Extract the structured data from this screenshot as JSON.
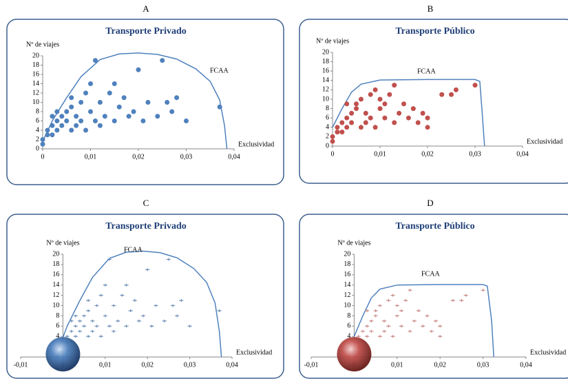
{
  "chart_data": [
    {
      "type": "scatter",
      "panel_label": "A",
      "title": "Transporte Privado",
      "y_label": "Nº de viajes",
      "x_label": "Exclusividad",
      "annotation": "FCAA",
      "marker": "circle",
      "xlim": [
        0,
        0.04
      ],
      "ylim": [
        0,
        20
      ],
      "xticks": [
        {
          "value": 0,
          "label": "0"
        },
        {
          "value": 0.01,
          "label": "0,01"
        },
        {
          "value": 0.02,
          "label": "0,02"
        },
        {
          "value": 0.03,
          "label": "0,03"
        },
        {
          "value": 0.04,
          "label": "0,04"
        }
      ],
      "yticks": [
        0,
        2,
        4,
        6,
        8,
        10,
        12,
        14,
        16,
        18,
        20
      ],
      "series": [
        {
          "color": "#4f81bd",
          "x": [
            0,
            0,
            0.001,
            0.001,
            0.002,
            0.002,
            0.003,
            0.003,
            0.004,
            0.004,
            0.005,
            0.005,
            0.006,
            0.006,
            0.007,
            0.007,
            0.008,
            0.008,
            0.009,
            0.009,
            0.01,
            0.01,
            0.011,
            0.011,
            0.012,
            0.012,
            0.013,
            0.014,
            0.015,
            0.015,
            0.016,
            0.017,
            0.018,
            0.019,
            0.02,
            0.021,
            0.022,
            0.024,
            0.025,
            0.026,
            0.027,
            0.028,
            0.03,
            0.037,
            0.003,
            0.006,
            0.002
          ],
          "values": [
            1,
            2,
            3,
            4,
            5,
            3,
            6,
            4,
            7,
            5,
            8,
            6,
            4,
            9,
            7,
            5,
            10,
            6,
            12,
            4,
            8,
            14,
            6,
            19,
            10,
            5,
            7,
            12,
            14,
            6,
            9,
            11,
            7,
            8,
            17,
            6,
            10,
            7,
            19,
            10,
            8,
            11,
            6,
            9,
            8,
            11,
            7
          ]
        }
      ],
      "curve": {
        "color": "#4f81bd",
        "x": [
          0,
          0.002,
          0.005,
          0.008,
          0.012,
          0.016,
          0.02,
          0.024,
          0.028,
          0.032,
          0.035,
          0.037,
          0.038,
          0.0385
        ],
        "y": [
          1.6,
          6,
          11,
          15.5,
          19.2,
          20.4,
          20.6,
          20.3,
          19.3,
          17.2,
          14.5,
          10.5,
          5,
          0
        ]
      }
    },
    {
      "type": "scatter",
      "panel_label": "B",
      "title": "Transporte Público",
      "y_label": "Nº de viajes",
      "x_label": "Exclusividad",
      "annotation": "FCAA",
      "marker": "circle",
      "xlim": [
        0,
        0.04
      ],
      "ylim": [
        0,
        20
      ],
      "xticks": [
        {
          "value": 0,
          "label": "0"
        },
        {
          "value": 0.01,
          "label": "0,01"
        },
        {
          "value": 0.02,
          "label": "0,02"
        },
        {
          "value": 0.03,
          "label": "0,03"
        },
        {
          "value": 0.04,
          "label": "0,04"
        }
      ],
      "yticks": [
        0,
        2,
        4,
        6,
        8,
        10,
        12,
        14,
        16,
        18,
        20
      ],
      "series": [
        {
          "color": "#c0504d",
          "x": [
            0,
            0,
            0.001,
            0.001,
            0.002,
            0.002,
            0.003,
            0.003,
            0.004,
            0.004,
            0.005,
            0.005,
            0.006,
            0.006,
            0.007,
            0.007,
            0.008,
            0.008,
            0.009,
            0.009,
            0.01,
            0.01,
            0.011,
            0.012,
            0.013,
            0.013,
            0.014,
            0.015,
            0.016,
            0.017,
            0.018,
            0.019,
            0.02,
            0.02,
            0.023,
            0.025,
            0.026,
            0.03,
            0.003,
            0.011
          ],
          "values": [
            1,
            2,
            3,
            4,
            5,
            3,
            6,
            4,
            7,
            5,
            8,
            9,
            4,
            10,
            7,
            5,
            11,
            6,
            12,
            4,
            8,
            10,
            6,
            11,
            13,
            5,
            7,
            9,
            6,
            8,
            5,
            7,
            6,
            4,
            11,
            11,
            12,
            13,
            9,
            9
          ]
        }
      ],
      "curve": {
        "color": "#4f81bd",
        "x": [
          0,
          0.002,
          0.004,
          0.006,
          0.01,
          0.02,
          0.03,
          0.031,
          0.0315,
          0.032
        ],
        "y": [
          4,
          8,
          11.5,
          13.2,
          14.1,
          14.2,
          14.2,
          13.8,
          7,
          0
        ]
      }
    },
    {
      "type": "scatter",
      "panel_label": "C",
      "title": "Transporte Privado",
      "y_label": "Nº de viajes",
      "x_label": "Exclusividad",
      "annotation": "FCAA",
      "marker": "plus",
      "xlim": [
        -0.01,
        0.04
      ],
      "ylim": [
        -2,
        20
      ],
      "xticks": [
        {
          "value": -0.01,
          "label": "-0,01"
        },
        {
          "value": 0,
          "label": "0"
        },
        {
          "value": 0.01,
          "label": "0,01"
        },
        {
          "value": 0.02,
          "label": "0,02"
        },
        {
          "value": 0.03,
          "label": "0,03"
        },
        {
          "value": 0.04,
          "label": "0,04"
        }
      ],
      "yticks": [
        -2,
        0,
        2,
        4,
        6,
        8,
        10,
        12,
        14,
        16,
        18,
        20
      ],
      "series": [
        {
          "color": "#6f8fb8",
          "x": [
            0,
            0,
            0.001,
            0.001,
            0.002,
            0.002,
            0.003,
            0.003,
            0.004,
            0.004,
            0.005,
            0.005,
            0.006,
            0.006,
            0.007,
            0.007,
            0.008,
            0.008,
            0.009,
            0.009,
            0.01,
            0.01,
            0.011,
            0.011,
            0.012,
            0.012,
            0.013,
            0.014,
            0.015,
            0.015,
            0.016,
            0.017,
            0.018,
            0.019,
            0.02,
            0.021,
            0.022,
            0.024,
            0.025,
            0.026,
            0.027,
            0.028,
            0.03,
            0.037,
            0.003,
            0.006,
            0.002
          ],
          "values": [
            1,
            2,
            3,
            4,
            5,
            3,
            6,
            4,
            7,
            5,
            8,
            6,
            4,
            9,
            7,
            5,
            10,
            6,
            12,
            4,
            8,
            14,
            6,
            19,
            10,
            5,
            7,
            12,
            14,
            6,
            9,
            11,
            7,
            8,
            17,
            6,
            10,
            7,
            19,
            10,
            8,
            11,
            6,
            9,
            8,
            11,
            7
          ]
        }
      ],
      "curve": {
        "color": "#4f81bd",
        "x": [
          -0.001,
          0.001,
          0.004,
          0.007,
          0.011,
          0.015,
          0.019,
          0.023,
          0.027,
          0.031,
          0.034,
          0.036,
          0.037,
          0.0375
        ],
        "y": [
          1.6,
          6,
          11,
          15.5,
          19.2,
          20.4,
          20.6,
          20.3,
          19.3,
          17.2,
          14.5,
          10.5,
          5,
          0
        ]
      }
    },
    {
      "type": "scatter",
      "panel_label": "D",
      "title": "Transporte Público",
      "y_label": "Nº de viajes",
      "x_label": "Exclusividad",
      "annotation": "FCAA",
      "marker": "plus",
      "xlim": [
        -0.01,
        0.04
      ],
      "ylim": [
        -2,
        20
      ],
      "xticks": [
        {
          "value": -0.01,
          "label": "-0,01"
        },
        {
          "value": 0,
          "label": "0"
        },
        {
          "value": 0.01,
          "label": "0,01"
        },
        {
          "value": 0.02,
          "label": "0,02"
        },
        {
          "value": 0.03,
          "label": "0,03"
        },
        {
          "value": 0.04,
          "label": "0,04"
        }
      ],
      "yticks": [
        -2,
        0,
        2,
        4,
        6,
        8,
        10,
        12,
        14,
        16,
        18,
        20
      ],
      "series": [
        {
          "color": "#c98a88",
          "x": [
            0,
            0,
            0.001,
            0.001,
            0.002,
            0.002,
            0.003,
            0.003,
            0.004,
            0.004,
            0.005,
            0.005,
            0.006,
            0.006,
            0.007,
            0.007,
            0.008,
            0.008,
            0.009,
            0.009,
            0.01,
            0.01,
            0.011,
            0.012,
            0.013,
            0.013,
            0.014,
            0.015,
            0.016,
            0.017,
            0.018,
            0.019,
            0.02,
            0.02,
            0.023,
            0.025,
            0.026,
            0.03,
            0.003,
            0.011
          ],
          "values": [
            1,
            2,
            3,
            4,
            5,
            3,
            6,
            4,
            7,
            5,
            8,
            9,
            4,
            10,
            7,
            5,
            11,
            6,
            12,
            4,
            8,
            10,
            6,
            11,
            13,
            5,
            7,
            9,
            6,
            8,
            5,
            7,
            6,
            4,
            11,
            11,
            12,
            13,
            9,
            9
          ]
        }
      ],
      "curve": {
        "color": "#4f81bd",
        "x": [
          0,
          0.002,
          0.004,
          0.006,
          0.01,
          0.02,
          0.03,
          0.031,
          0.032,
          0.0325
        ],
        "y": [
          4,
          8,
          11.5,
          13.2,
          14,
          14.1,
          14.1,
          13.8,
          7,
          0
        ]
      }
    }
  ]
}
